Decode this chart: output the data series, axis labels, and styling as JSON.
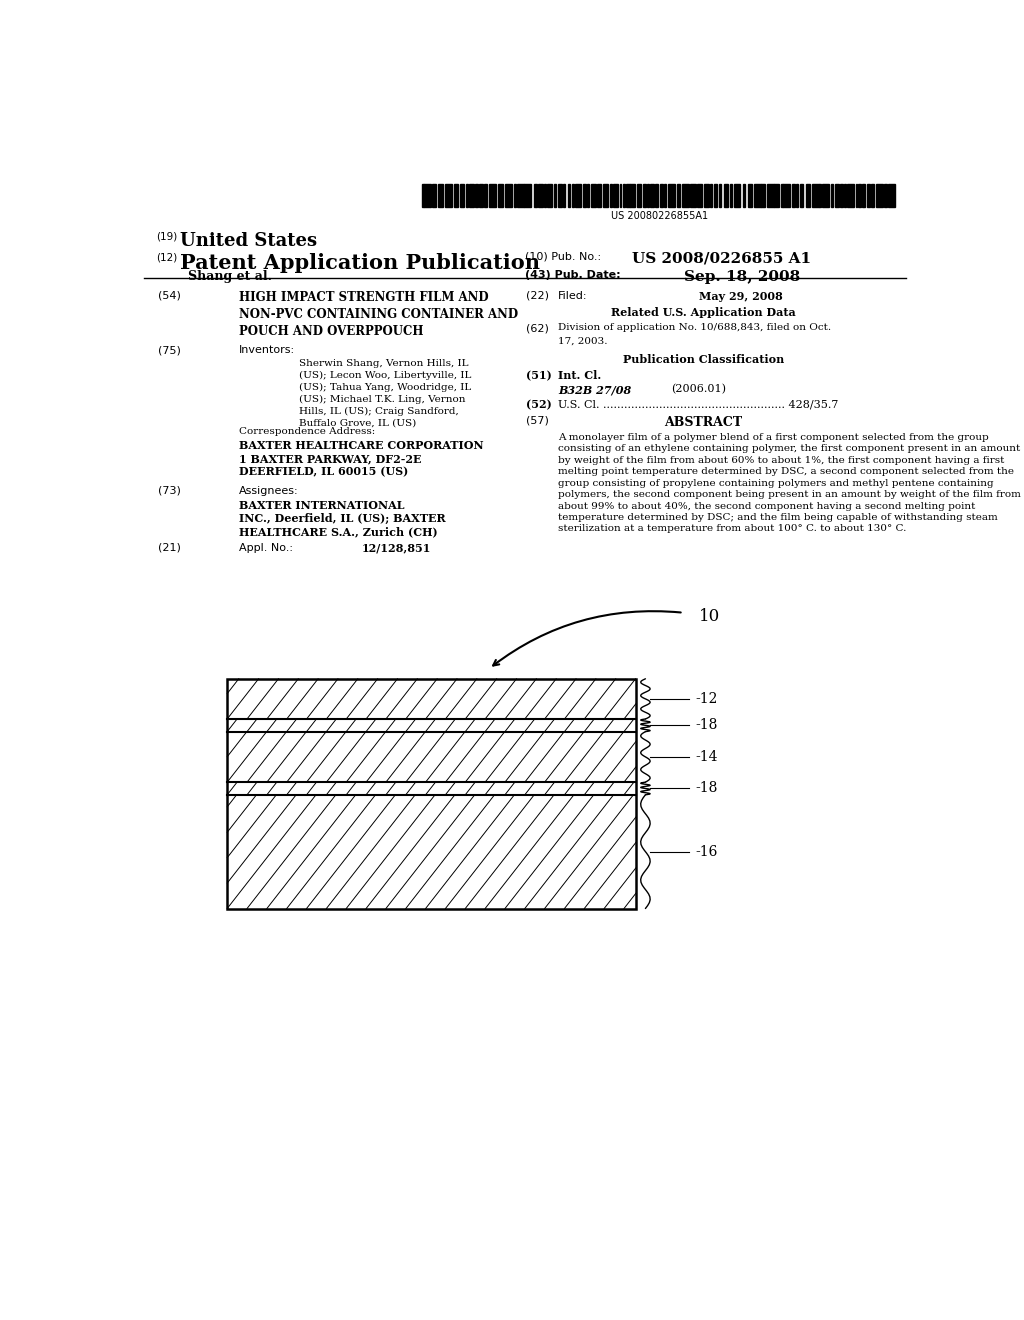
{
  "bg_color": "#ffffff",
  "barcode_text": "US 20080226855A1",
  "title19": "(19)",
  "title19_text": "United States",
  "title12": "(12)",
  "title12_text": "Patent Application Publication",
  "pub_no_label": "(10) Pub. No.:",
  "pub_no_value": "US 2008/0226855 A1",
  "inventors_label": "Shang et al.",
  "pub_date_label": "(43) Pub. Date:",
  "pub_date_value": "Sep. 18, 2008",
  "field54_label": "(54)",
  "field54_text": "HIGH IMPACT STRENGTH FILM AND\nNON-PVC CONTAINING CONTAINER AND\nPOUCH AND OVERPPOUCH",
  "field22_label": "(22)",
  "field22_filed": "Filed:",
  "field22_date": "May 29, 2008",
  "related_data_title": "Related U.S. Application Data",
  "field62_label": "(62)",
  "field62_text": "Division of application No. 10/688,843, filed on Oct.\n17, 2003.",
  "pub_class_title": "Publication Classification",
  "field51_label": "(51)",
  "field51_intcl": "Int. Cl.",
  "field51_class": "B32B 27/08",
  "field51_year": "(2006.01)",
  "field52_label": "(52)",
  "field52_uscl": "U.S. Cl. .................................................... 428/35.7",
  "field57_label": "(57)",
  "field57_abstract": "ABSTRACT",
  "abstract_text": "A monolayer film of a polymer blend of a first component selected from the group consisting of an ethylene containing polymer, the first component present in an amount by weight of the film from about 60% to about 1%, the first component having a first melting point temperature determined by DSC, a second component selected from the group consisting of propylene containing polymers and methyl pentene containing polymers, the second component being present in an amount by weight of the film from about 99% to about 40%, the second component having a second melting point temperature determined by DSC; and the film being capable of withstanding steam sterilization at a temperature from about 100° C. to about 130° C.",
  "field75_label": "(75)",
  "field75_inventors": "Inventors:",
  "field75_text": "Sherwin Shang, Vernon Hills, IL\n(US); Lecon Woo, Libertyville, IL\n(US); Tahua Yang, Woodridge, IL\n(US); Michael T.K. Ling, Vernon\nHills, IL (US); Craig Sandford,\nBuffalo Grove, IL (US)",
  "correspondence_label": "Correspondence Address:",
  "correspondence_text": "BAXTER HEALTHCARE CORPORATION\n1 BAXTER PARKWAY, DF2-2E\nDEERFIELD, IL 60015 (US)",
  "field73_label": "(73)",
  "field73_assignees": "Assignees:",
  "field73_text": "BAXTER INTERNATIONAL\nINC., Deerfield, IL (US); BAXTER\nHEALTHCARE S.A., Zurich (CH)",
  "field21_label": "(21)",
  "field21_appl": "Appl. No.:",
  "field21_no": "12/128,851",
  "diagram_label10": "10",
  "diagram_label12": "12",
  "diagram_label14": "14",
  "diagram_label16": "16",
  "diagram_label18a": "18",
  "diagram_label18b": "18"
}
